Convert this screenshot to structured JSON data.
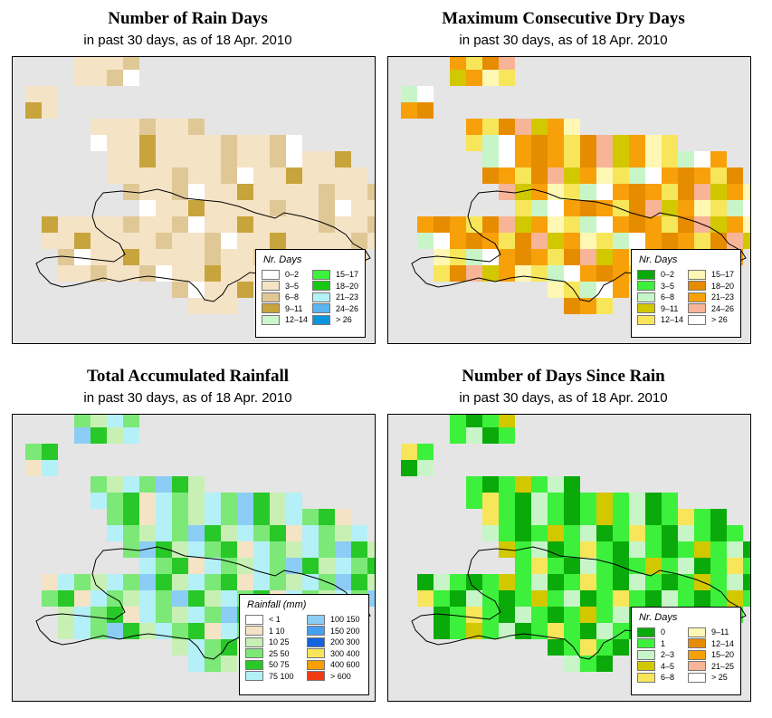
{
  "panels": [
    {
      "title": "Number of Rain Days",
      "subtitle": "in past 30 days, as of  18 Apr. 2010",
      "legend_title": "Nr. Days",
      "legend": [
        {
          "label": "0–2",
          "color": "#ffffff"
        },
        {
          "label": "3–5",
          "color": "#f5e3c6"
        },
        {
          "label": "6–8",
          "color": "#e0c896"
        },
        {
          "label": "9–11",
          "color": "#c8a43c"
        },
        {
          "label": "12–14",
          "color": "#ccf7cc"
        },
        {
          "label": "15–17",
          "color": "#3cf03c"
        },
        {
          "label": "18–20",
          "color": "#14c814"
        },
        {
          "label": "21–23",
          "color": "#b4f0f7"
        },
        {
          "label": "24–26",
          "color": "#5ab4f0"
        },
        {
          "label": "> 26",
          "color": "#0a96dc"
        }
      ]
    },
    {
      "title": "Maximum Consecutive Dry Days",
      "subtitle": "in past 30 days, as of  18 Apr. 2010",
      "legend_title": "Nr. Days",
      "legend": [
        {
          "label": "0–2",
          "color": "#0aaa0a"
        },
        {
          "label": "3–5",
          "color": "#3cf03c"
        },
        {
          "label": "6–8",
          "color": "#c8f5c8"
        },
        {
          "label": "9–11",
          "color": "#d2c800"
        },
        {
          "label": "12–14",
          "color": "#f7e65a"
        },
        {
          "label": "15–17",
          "color": "#fff7b4"
        },
        {
          "label": "18–20",
          "color": "#e68c00"
        },
        {
          "label": "21–23",
          "color": "#f7a00a"
        },
        {
          "label": "24–26",
          "color": "#f7b496"
        },
        {
          "label": "> 26",
          "color": "#ffffff"
        }
      ]
    },
    {
      "title": "Total Accumulated Rainfall",
      "subtitle": "in past 30 days, as of  18 Apr. 2010",
      "legend_title": "Rainfall (mm)",
      "legend": [
        {
          "label": "< 1",
          "color": "#ffffff"
        },
        {
          "label": "1    10",
          "color": "#f5e3c6"
        },
        {
          "label": "10    25",
          "color": "#c8f0b4"
        },
        {
          "label": "25    50",
          "color": "#7ce878"
        },
        {
          "label": "50    75",
          "color": "#28c828"
        },
        {
          "label": "75    100",
          "color": "#b4f0f7"
        },
        {
          "label": "100    150",
          "color": "#8ccdf5"
        },
        {
          "label": "150    200",
          "color": "#46a0f0"
        },
        {
          "label": "200    300",
          "color": "#1464dc"
        },
        {
          "label": "300    400",
          "color": "#f7e65a"
        },
        {
          "label": "400    600",
          "color": "#f7a000"
        },
        {
          "label": "> 600",
          "color": "#f03c14"
        }
      ]
    },
    {
      "title": "Number of Days Since Rain",
      "subtitle": "in past 30 days, as of  18 Apr. 2010",
      "legend_title": "Nr. Days",
      "legend": [
        {
          "label": "0",
          "color": "#0aaa0a"
        },
        {
          "label": "1",
          "color": "#3cf03c"
        },
        {
          "label": "2–3",
          "color": "#c8f5c8"
        },
        {
          "label": "4–5",
          "color": "#d2c800"
        },
        {
          "label": "6–8",
          "color": "#f7e65a"
        },
        {
          "label": "9–11",
          "color": "#fff7b4"
        },
        {
          "label": "12–14",
          "color": "#e68c00"
        },
        {
          "label": "15–20",
          "color": "#f7a00a"
        },
        {
          "label": "21–25",
          "color": "#f7b496"
        },
        {
          "label": "> 25",
          "color": "#ffffff"
        }
      ]
    }
  ],
  "map_style": {
    "background": "#e5e5e5",
    "coastline": "#000000"
  }
}
